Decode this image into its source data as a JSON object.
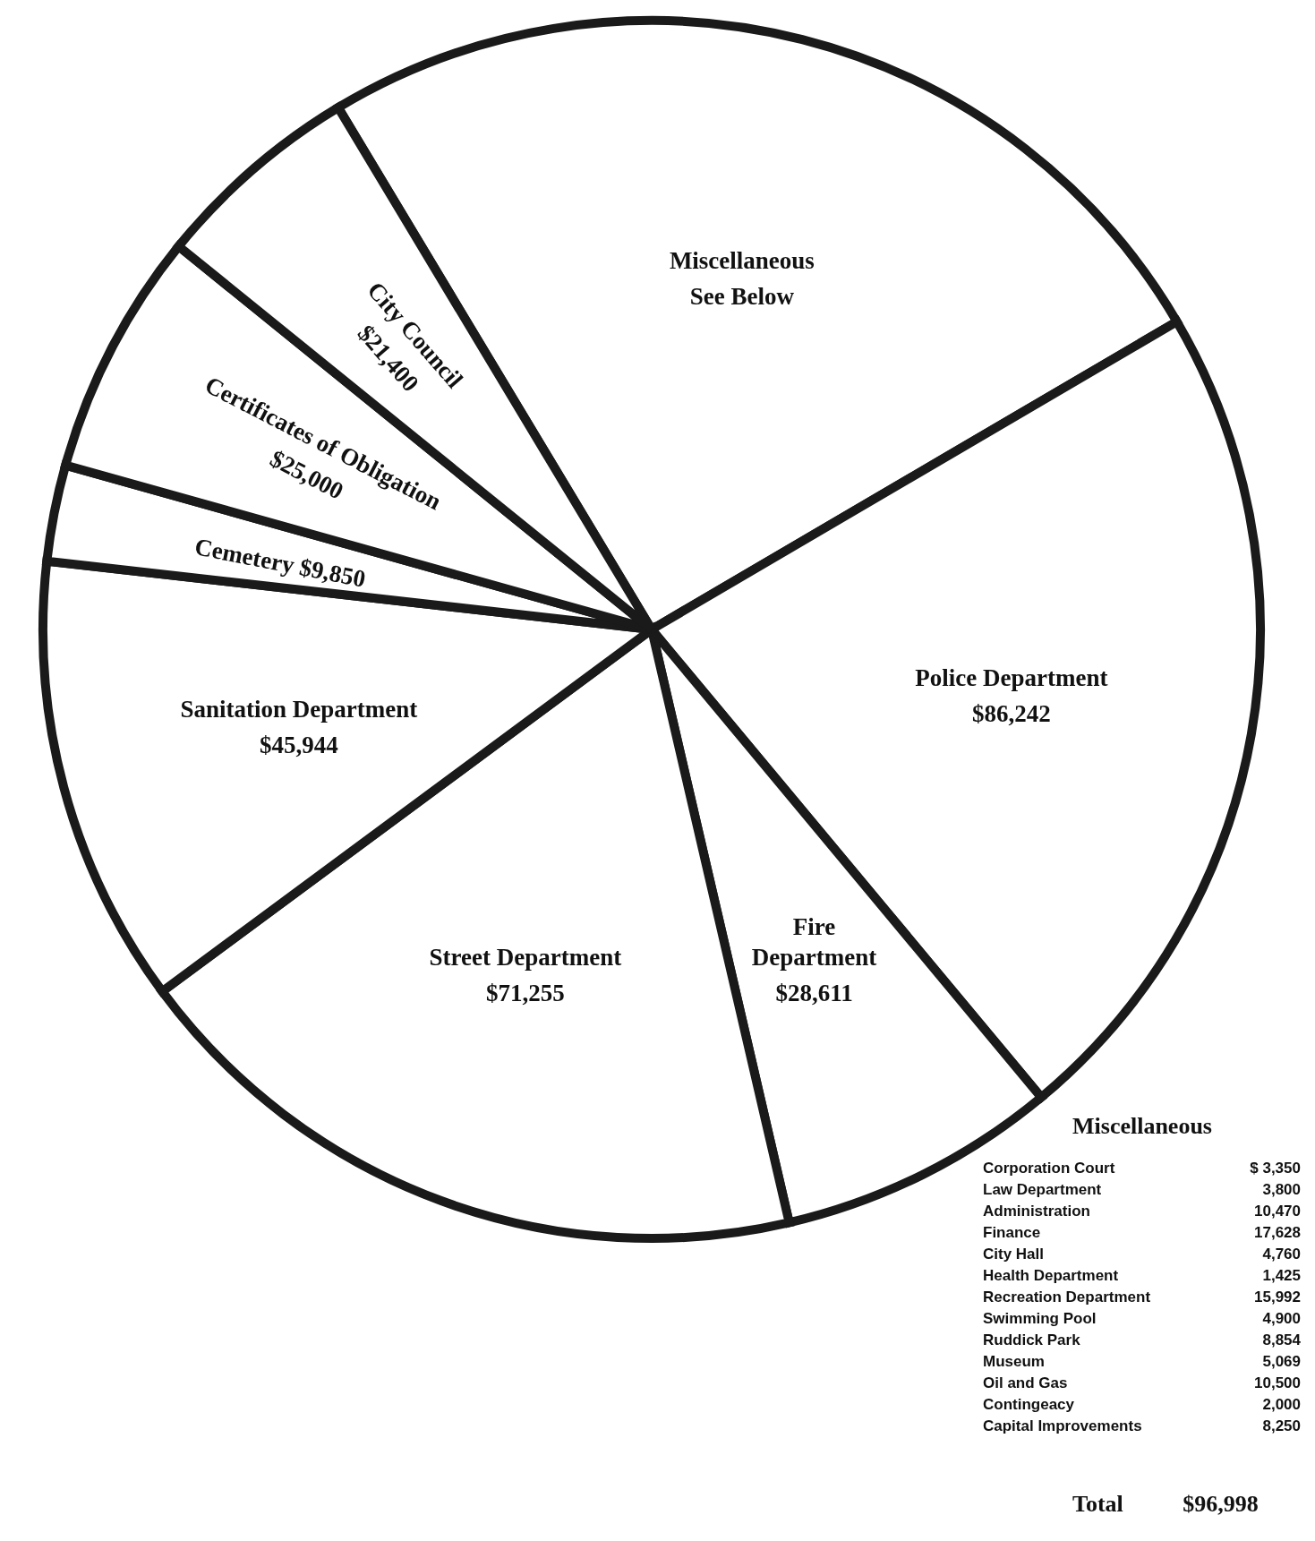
{
  "chart_data": [
    {
      "type": "pie",
      "categories": [
        "Miscellaneous",
        "Police Department",
        "Fire Department",
        "Street Department",
        "Sanitation Department",
        "Cemetery",
        "Certificates of Obligation",
        "City Council"
      ],
      "values": [
        96998,
        86242,
        28611,
        71255,
        45944,
        9850,
        25000,
        21400
      ],
      "value_labels": [
        "See Below",
        "$86,242",
        "$28,611",
        "$71,255",
        "$45,944",
        "$9,850",
        "$25,000",
        "$21,400"
      ],
      "colors": [
        "#ffffff",
        "#ffffff",
        "#ffffff",
        "#ffffff",
        "#ffffff",
        "#ffffff",
        "#ffffff",
        "#ffffff"
      ]
    },
    {
      "type": "other",
      "title": "Miscellaneous",
      "categories": [
        "Corporation Court",
        "Law Department",
        "Administration",
        "Finance",
        "City Hall",
        "Health Department",
        "Recreation Department",
        "Swimming Pool",
        "Ruddick Park",
        "Museum",
        "Oil and Gas",
        "Contingeacy",
        "Capital Improvements"
      ],
      "value_labels": [
        "$ 3,350",
        "3,800",
        "10,470",
        "17,628",
        "4,760",
        "1,425",
        "15,992",
        "4,900",
        "8,854",
        "5,069",
        "10,500",
        "2,000",
        "8,250"
      ],
      "annotations": [
        "Total $96,998"
      ]
    }
  ]
}
